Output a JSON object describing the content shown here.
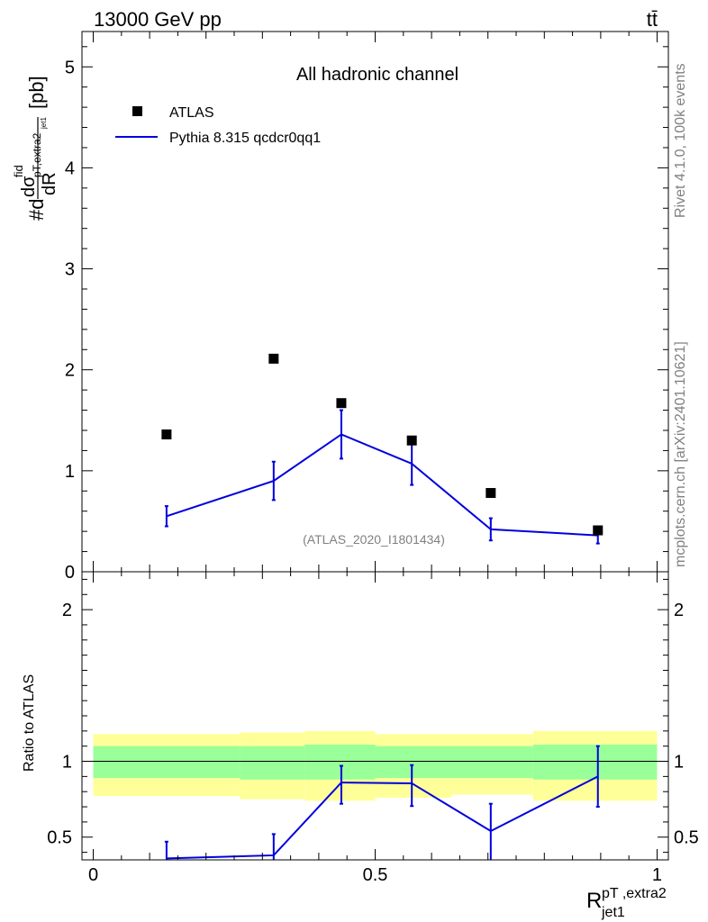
{
  "header": {
    "left_text": "13000 GeV pp",
    "right_text": "tt̄"
  },
  "side_labels": {
    "rivet": "Rivet 4.1.0,  100k events",
    "mcplots": "mcplots.cern.ch [arXiv:2401.10621]"
  },
  "colors": {
    "mc": "#0000dd",
    "data": "#000000",
    "band_outer": "#ffff99",
    "band_inner": "#99ff99",
    "watermark": "#808080"
  },
  "chart_data": [
    {
      "type": "scatter",
      "panel": "main",
      "title": "All hadronic channel",
      "watermark": "(ATLAS_2020_I1801434)",
      "ylabel": {
        "prefix": "#d",
        "sigma": "dσ",
        "sup": "fid",
        "sub": "pT,extra2",
        "subsub": "jet1",
        "denom": "dR",
        "unit": "[pb]"
      },
      "xlim": [
        -0.02,
        1.02
      ],
      "ylim": [
        0,
        5.35
      ],
      "yticks": [
        0,
        1,
        2,
        3,
        4,
        5
      ],
      "ytick_labels": [
        "0",
        "1",
        "2",
        "3",
        "4",
        "5"
      ],
      "legend": {
        "position": "top-left",
        "entries": [
          "ATLAS",
          "Pythia 8.315 qcdcr0qq1"
        ]
      },
      "series": [
        {
          "name": "ATLAS",
          "style": "markers",
          "x": [
            0.13,
            0.32,
            0.44,
            0.565,
            0.705,
            0.895
          ],
          "y": [
            1.36,
            2.11,
            1.67,
            1.3,
            0.78,
            0.41
          ]
        },
        {
          "name": "Pythia 8.315 qcdcr0qq1",
          "style": "line",
          "x": [
            0.13,
            0.32,
            0.44,
            0.565,
            0.705,
            0.895
          ],
          "y": [
            0.55,
            0.9,
            1.36,
            1.07,
            0.42,
            0.36
          ],
          "err": [
            0.1,
            0.19,
            0.24,
            0.21,
            0.11,
            0.08
          ]
        }
      ]
    },
    {
      "type": "line",
      "panel": "ratio",
      "ylabel": "Ratio to ATLAS",
      "xlabel_base": "R",
      "xlabel_sup": "pT ,extra2",
      "xlabel_sub": "jet1",
      "xlim": [
        -0.02,
        1.02
      ],
      "ylim": [
        0.35,
        2.25
      ],
      "xticks": [
        0,
        0.5,
        1
      ],
      "xtick_labels": [
        "0",
        "0.5",
        "1"
      ],
      "yticks": [
        0.5,
        1,
        2
      ],
      "ytick_labels": [
        "0.5",
        "1",
        "2"
      ],
      "bands": {
        "edges": [
          0,
          0.26,
          0.375,
          0.5,
          0.635,
          0.78,
          1.0
        ],
        "outer_lo": [
          0.77,
          0.75,
          0.74,
          0.76,
          0.78,
          0.74
        ],
        "outer_hi": [
          1.18,
          1.19,
          1.2,
          1.18,
          1.18,
          1.2
        ],
        "inner_lo": [
          0.89,
          0.88,
          0.88,
          0.89,
          0.89,
          0.88
        ],
        "inner_hi": [
          1.1,
          1.1,
          1.11,
          1.1,
          1.1,
          1.11
        ]
      },
      "series": [
        {
          "name": "Pythia 8.315 qcdcr0qq1",
          "x": [
            0.13,
            0.32,
            0.44,
            0.565,
            0.705,
            0.895
          ],
          "y": [
            0.36,
            0.38,
            0.86,
            0.855,
            0.54,
            0.9
          ],
          "err_lo": [
            0.02,
            0.04,
            0.14,
            0.15,
            0.19,
            0.2
          ],
          "err_hi": [
            0.11,
            0.14,
            0.11,
            0.12,
            0.18,
            0.2
          ]
        }
      ]
    }
  ]
}
